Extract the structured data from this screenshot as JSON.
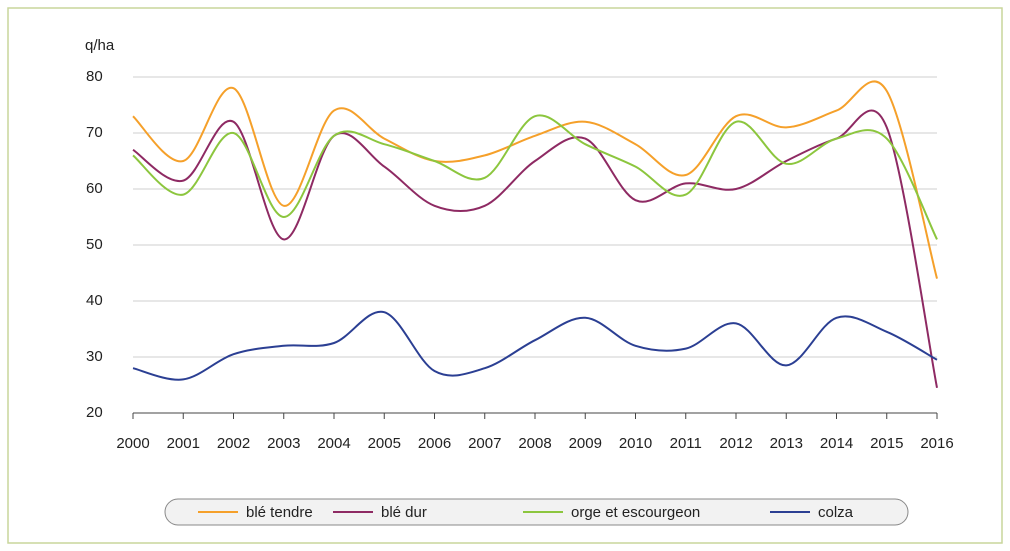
{
  "chart_data": {
    "type": "line",
    "y_label": "q/ha",
    "x": [
      2000,
      2001,
      2002,
      2003,
      2004,
      2005,
      2006,
      2007,
      2008,
      2009,
      2010,
      2011,
      2012,
      2013,
      2014,
      2015,
      2016
    ],
    "xlim": [
      2000,
      2016
    ],
    "xticks": [
      2000,
      2001,
      2002,
      2003,
      2004,
      2005,
      2006,
      2007,
      2008,
      2009,
      2010,
      2011,
      2012,
      2013,
      2014,
      2015,
      2016
    ],
    "ylim": [
      20,
      80
    ],
    "yticks": [
      20,
      30,
      40,
      50,
      60,
      70,
      80
    ],
    "grid": true,
    "legend": "bottom",
    "series": [
      {
        "name": "blé tendre",
        "color": "#f5a02a",
        "values": [
          73,
          65,
          78,
          57,
          74,
          69,
          65,
          66,
          69.5,
          72,
          68,
          62.5,
          73,
          71,
          74,
          77.5,
          44
        ]
      },
      {
        "name": "blé dur",
        "color": "#8e2a63",
        "values": [
          67,
          61.5,
          72,
          51,
          69.5,
          64,
          57,
          57,
          65,
          69,
          58,
          61,
          60,
          65,
          69,
          71,
          24.5
        ]
      },
      {
        "name": "orge et escourgeon",
        "color": "#8cc63e",
        "values": [
          66,
          59,
          70,
          55,
          69.5,
          68,
          65,
          62,
          73,
          68,
          64,
          59,
          72,
          64.5,
          69,
          69,
          51
        ]
      },
      {
        "name": "colza",
        "color": "#2b3f93",
        "values": [
          28,
          26,
          30.5,
          32,
          32.5,
          38,
          27.5,
          28,
          33,
          37,
          32,
          31.5,
          36,
          28.5,
          37,
          34.5,
          29.5
        ]
      }
    ]
  }
}
